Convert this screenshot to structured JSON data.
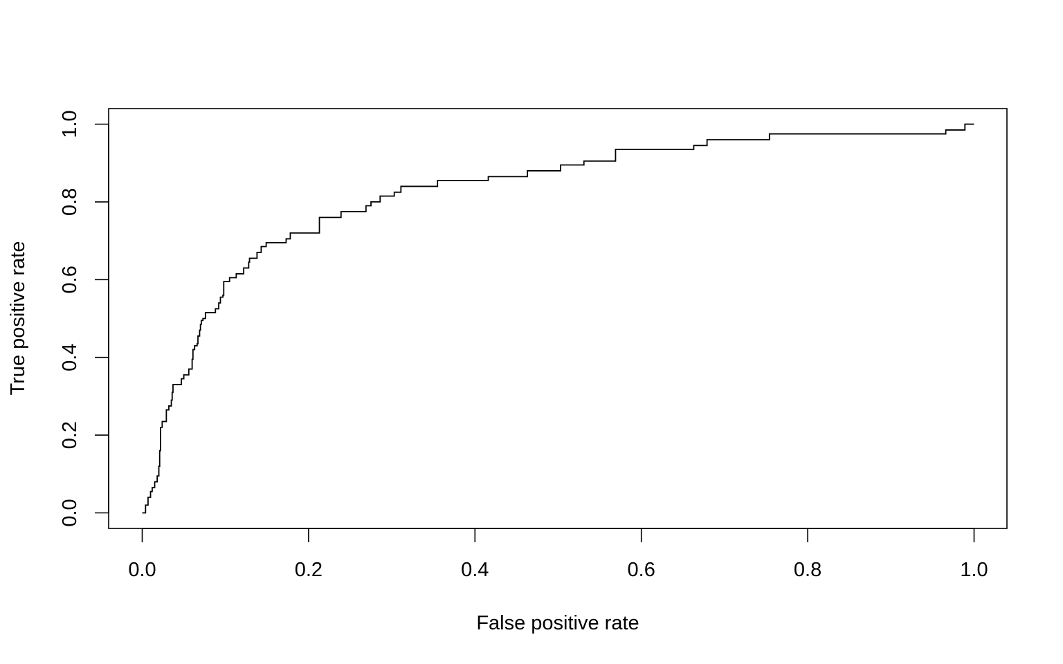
{
  "chart_data": {
    "type": "line",
    "title": "",
    "xlabel": "False positive rate",
    "ylabel": "True positive rate",
    "xlim": [
      0.0,
      1.0
    ],
    "ylim": [
      0.0,
      1.0
    ],
    "xticks": [
      "0.0",
      "0.2",
      "0.4",
      "0.6",
      "0.8",
      "1.0"
    ],
    "yticks": [
      "0.0",
      "0.2",
      "0.4",
      "0.6",
      "0.8",
      "1.0"
    ],
    "grid": false,
    "legend": "none",
    "line_color": "#000000",
    "series": [
      {
        "step": true,
        "points": [
          [
            0.0,
            0.0
          ],
          [
            0.004,
            0.0
          ],
          [
            0.004,
            0.02
          ],
          [
            0.007,
            0.04
          ],
          [
            0.01,
            0.055
          ],
          [
            0.012,
            0.065
          ],
          [
            0.015,
            0.08
          ],
          [
            0.018,
            0.095
          ],
          [
            0.02,
            0.12
          ],
          [
            0.021,
            0.16
          ],
          [
            0.022,
            0.22
          ],
          [
            0.024,
            0.235
          ],
          [
            0.028,
            0.235
          ],
          [
            0.029,
            0.265
          ],
          [
            0.032,
            0.275
          ],
          [
            0.035,
            0.29
          ],
          [
            0.036,
            0.31
          ],
          [
            0.037,
            0.33
          ],
          [
            0.046,
            0.33
          ],
          [
            0.047,
            0.345
          ],
          [
            0.05,
            0.355
          ],
          [
            0.055,
            0.355
          ],
          [
            0.056,
            0.37
          ],
          [
            0.06,
            0.37
          ],
          [
            0.06,
            0.395
          ],
          [
            0.061,
            0.42
          ],
          [
            0.063,
            0.43
          ],
          [
            0.066,
            0.435
          ],
          [
            0.067,
            0.455
          ],
          [
            0.069,
            0.47
          ],
          [
            0.07,
            0.485
          ],
          [
            0.071,
            0.495
          ],
          [
            0.073,
            0.5
          ],
          [
            0.076,
            0.515
          ],
          [
            0.087,
            0.515
          ],
          [
            0.088,
            0.525
          ],
          [
            0.092,
            0.54
          ],
          [
            0.094,
            0.555
          ],
          [
            0.097,
            0.56
          ],
          [
            0.098,
            0.595
          ],
          [
            0.104,
            0.595
          ],
          [
            0.105,
            0.605
          ],
          [
            0.112,
            0.605
          ],
          [
            0.113,
            0.615
          ],
          [
            0.121,
            0.615
          ],
          [
            0.122,
            0.63
          ],
          [
            0.127,
            0.63
          ],
          [
            0.128,
            0.645
          ],
          [
            0.129,
            0.655
          ],
          [
            0.137,
            0.655
          ],
          [
            0.138,
            0.67
          ],
          [
            0.142,
            0.67
          ],
          [
            0.143,
            0.685
          ],
          [
            0.148,
            0.685
          ],
          [
            0.149,
            0.695
          ],
          [
            0.172,
            0.695
          ],
          [
            0.173,
            0.705
          ],
          [
            0.177,
            0.705
          ],
          [
            0.178,
            0.72
          ],
          [
            0.212,
            0.72
          ],
          [
            0.213,
            0.76
          ],
          [
            0.238,
            0.76
          ],
          [
            0.239,
            0.775
          ],
          [
            0.268,
            0.775
          ],
          [
            0.269,
            0.79
          ],
          [
            0.274,
            0.79
          ],
          [
            0.275,
            0.8
          ],
          [
            0.285,
            0.8
          ],
          [
            0.286,
            0.815
          ],
          [
            0.302,
            0.815
          ],
          [
            0.303,
            0.825
          ],
          [
            0.31,
            0.825
          ],
          [
            0.311,
            0.84
          ],
          [
            0.354,
            0.84
          ],
          [
            0.355,
            0.855
          ],
          [
            0.415,
            0.855
          ],
          [
            0.416,
            0.865
          ],
          [
            0.462,
            0.865
          ],
          [
            0.463,
            0.88
          ],
          [
            0.502,
            0.88
          ],
          [
            0.503,
            0.895
          ],
          [
            0.53,
            0.895
          ],
          [
            0.531,
            0.905
          ],
          [
            0.568,
            0.905
          ],
          [
            0.569,
            0.935
          ],
          [
            0.662,
            0.935
          ],
          [
            0.663,
            0.945
          ],
          [
            0.678,
            0.945
          ],
          [
            0.679,
            0.96
          ],
          [
            0.753,
            0.96
          ],
          [
            0.754,
            0.975
          ],
          [
            0.965,
            0.975
          ],
          [
            0.966,
            0.985
          ],
          [
            0.988,
            0.985
          ],
          [
            0.989,
            1.0
          ],
          [
            1.0,
            1.0
          ]
        ]
      }
    ]
  }
}
